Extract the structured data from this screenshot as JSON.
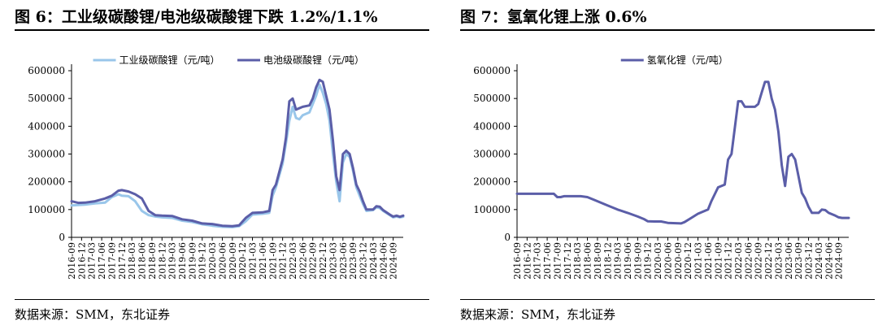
{
  "left": {
    "title": "图 6：工业级碳酸锂/电池级碳酸锂下跌 1.2%/1.1%",
    "source": "数据来源：SMM，东北证券"
  },
  "right": {
    "title": "图 7：氢氧化锂上涨 0.6%",
    "source": "数据来源：SMM，东北证券"
  },
  "chart_data": [
    {
      "type": "line",
      "title": "工业级碳酸锂/电池级碳酸锂下跌 1.2%/1.1%",
      "xlabel": "",
      "ylabel": "",
      "ylim": [
        0,
        600000
      ],
      "yticks": [
        "0",
        "100000",
        "200000",
        "300000",
        "400000",
        "500000",
        "600000"
      ],
      "x_start": "2016-09",
      "x_end": "2024-12",
      "tick_step_months": 3,
      "xticks": [
        "2016-09",
        "2016-12",
        "2017-03",
        "2017-06",
        "2017-09",
        "2017-12",
        "2018-03",
        "2018-06",
        "2018-09",
        "2018-12",
        "2019-03",
        "2019-06",
        "2019-09",
        "2019-12",
        "2020-03",
        "2020-06",
        "2020-09",
        "2020-12",
        "2021-03",
        "2021-06",
        "2021-09",
        "2021-12",
        "2022-03",
        "2022-06",
        "2022-09",
        "2022-12",
        "2023-03",
        "2023-06",
        "2023-09",
        "2023-12",
        "2024-03",
        "2024-06",
        "2024-09"
      ],
      "legend_position": "top",
      "series": [
        {
          "name": "工业级碳酸锂（元/吨）",
          "color": "#99c6ea",
          "points": [
            [
              "2016-09",
              115000
            ],
            [
              "2017-01",
              118000
            ],
            [
              "2017-04",
              122000
            ],
            [
              "2017-07",
              125000
            ],
            [
              "2017-09",
              145000
            ],
            [
              "2017-11",
              155000
            ],
            [
              "2017-12",
              150000
            ],
            [
              "2018-02",
              148000
            ],
            [
              "2018-04",
              130000
            ],
            [
              "2018-06",
              95000
            ],
            [
              "2018-08",
              80000
            ],
            [
              "2018-10",
              75000
            ],
            [
              "2018-12",
              72000
            ],
            [
              "2019-03",
              70000
            ],
            [
              "2019-06",
              60000
            ],
            [
              "2019-09",
              55000
            ],
            [
              "2019-12",
              47000
            ],
            [
              "2020-03",
              42000
            ],
            [
              "2020-06",
              38000
            ],
            [
              "2020-09",
              37000
            ],
            [
              "2020-11",
              40000
            ],
            [
              "2021-01",
              58000
            ],
            [
              "2021-03",
              82000
            ],
            [
              "2021-06",
              85000
            ],
            [
              "2021-08",
              88000
            ],
            [
              "2021-09",
              150000
            ],
            [
              "2021-10",
              180000
            ],
            [
              "2021-12",
              265000
            ],
            [
              "2022-01",
              340000
            ],
            [
              "2022-02",
              420000
            ],
            [
              "2022-03",
              470000
            ],
            [
              "2022-04",
              430000
            ],
            [
              "2022-05",
              425000
            ],
            [
              "2022-06",
              440000
            ],
            [
              "2022-08",
              450000
            ],
            [
              "2022-10",
              510000
            ],
            [
              "2022-11",
              550000
            ],
            [
              "2022-12",
              520000
            ],
            [
              "2023-01",
              480000
            ],
            [
              "2023-02",
              420000
            ],
            [
              "2023-03",
              300000
            ],
            [
              "2023-04",
              200000
            ],
            [
              "2023-05",
              130000
            ],
            [
              "2023-06",
              270000
            ],
            [
              "2023-07",
              300000
            ],
            [
              "2023-08",
              290000
            ],
            [
              "2023-09",
              240000
            ],
            [
              "2023-10",
              180000
            ],
            [
              "2023-11",
              150000
            ],
            [
              "2023-12",
              120000
            ],
            [
              "2024-01",
              95000
            ],
            [
              "2024-03",
              98000
            ],
            [
              "2024-04",
              108000
            ],
            [
              "2024-05",
              105000
            ],
            [
              "2024-06",
              95000
            ],
            [
              "2024-08",
              80000
            ],
            [
              "2024-09",
              72000
            ],
            [
              "2024-10",
              75000
            ],
            [
              "2024-11",
              72000
            ],
            [
              "2024-12",
              74000
            ]
          ]
        },
        {
          "name": "电池级碳酸锂（元/吨）",
          "color": "#5b5ea8",
          "points": [
            [
              "2016-09",
              130000
            ],
            [
              "2016-11",
              124000
            ],
            [
              "2017-01",
              125000
            ],
            [
              "2017-04",
              130000
            ],
            [
              "2017-07",
              140000
            ],
            [
              "2017-09",
              150000
            ],
            [
              "2017-11",
              168000
            ],
            [
              "2017-12",
              170000
            ],
            [
              "2018-02",
              165000
            ],
            [
              "2018-04",
              155000
            ],
            [
              "2018-06",
              140000
            ],
            [
              "2018-08",
              95000
            ],
            [
              "2018-10",
              80000
            ],
            [
              "2018-12",
              78000
            ],
            [
              "2019-03",
              77000
            ],
            [
              "2019-06",
              65000
            ],
            [
              "2019-09",
              60000
            ],
            [
              "2019-12",
              50000
            ],
            [
              "2020-03",
              48000
            ],
            [
              "2020-06",
              42000
            ],
            [
              "2020-09",
              40000
            ],
            [
              "2020-11",
              43000
            ],
            [
              "2021-01",
              70000
            ],
            [
              "2021-03",
              88000
            ],
            [
              "2021-06",
              90000
            ],
            [
              "2021-08",
              95000
            ],
            [
              "2021-09",
              170000
            ],
            [
              "2021-10",
              190000
            ],
            [
              "2021-12",
              280000
            ],
            [
              "2022-01",
              360000
            ],
            [
              "2022-02",
              490000
            ],
            [
              "2022-03",
              500000
            ],
            [
              "2022-04",
              460000
            ],
            [
              "2022-06",
              470000
            ],
            [
              "2022-08",
              475000
            ],
            [
              "2022-09",
              500000
            ],
            [
              "2022-10",
              540000
            ],
            [
              "2022-11",
              567000
            ],
            [
              "2022-12",
              560000
            ],
            [
              "2023-01",
              510000
            ],
            [
              "2023-02",
              460000
            ],
            [
              "2023-03",
              350000
            ],
            [
              "2023-04",
              220000
            ],
            [
              "2023-05",
              170000
            ],
            [
              "2023-06",
              300000
            ],
            [
              "2023-07",
              312000
            ],
            [
              "2023-08",
              300000
            ],
            [
              "2023-09",
              250000
            ],
            [
              "2023-10",
              190000
            ],
            [
              "2023-11",
              165000
            ],
            [
              "2023-12",
              130000
            ],
            [
              "2024-01",
              100000
            ],
            [
              "2024-03",
              100000
            ],
            [
              "2024-04",
              112000
            ],
            [
              "2024-05",
              110000
            ],
            [
              "2024-06",
              98000
            ],
            [
              "2024-08",
              82000
            ],
            [
              "2024-09",
              75000
            ],
            [
              "2024-10",
              78000
            ],
            [
              "2024-11",
              74000
            ],
            [
              "2024-12",
              78000
            ]
          ]
        }
      ]
    },
    {
      "type": "line",
      "title": "氢氧化锂上涨 0.6%",
      "xlabel": "",
      "ylabel": "",
      "ylim": [
        0,
        600000
      ],
      "yticks": [
        "0",
        "100000",
        "200000",
        "300000",
        "400000",
        "500000",
        "600000"
      ],
      "x_start": "2016-09",
      "x_end": "2024-12",
      "tick_step_months": 3,
      "xticks": [
        "2016-09",
        "2016-12",
        "2017-03",
        "2017-06",
        "2017-09",
        "2017-12",
        "2018-03",
        "2018-06",
        "2018-09",
        "2018-12",
        "2019-03",
        "2019-06",
        "2019-09",
        "2019-12",
        "2020-03",
        "2020-06",
        "2020-09",
        "2020-12",
        "2021-03",
        "2021-06",
        "2021-09",
        "2021-12",
        "2022-03",
        "2022-06",
        "2022-09",
        "2022-12",
        "2023-03",
        "2023-06",
        "2023-09",
        "2023-12",
        "2024-03",
        "2024-06",
        "2024-09"
      ],
      "legend_position": "top",
      "series": [
        {
          "name": "氢氧化锂（元/吨）",
          "color": "#5b5ea8",
          "points": [
            [
              "2016-09",
              157000
            ],
            [
              "2017-08",
              157000
            ],
            [
              "2017-09",
              145000
            ],
            [
              "2017-10",
              145000
            ],
            [
              "2017-11",
              148000
            ],
            [
              "2018-04",
              148000
            ],
            [
              "2018-06",
              145000
            ],
            [
              "2018-08",
              135000
            ],
            [
              "2018-12",
              115000
            ],
            [
              "2019-03",
              100000
            ],
            [
              "2019-06",
              88000
            ],
            [
              "2019-09",
              75000
            ],
            [
              "2019-11",
              65000
            ],
            [
              "2019-12",
              58000
            ],
            [
              "2020-02",
              57000
            ],
            [
              "2020-04",
              57000
            ],
            [
              "2020-06",
              52000
            ],
            [
              "2020-10",
              50000
            ],
            [
              "2020-11",
              55000
            ],
            [
              "2021-01",
              70000
            ],
            [
              "2021-03",
              85000
            ],
            [
              "2021-06",
              100000
            ],
            [
              "2021-07",
              130000
            ],
            [
              "2021-09",
              180000
            ],
            [
              "2021-11",
              190000
            ],
            [
              "2021-12",
              280000
            ],
            [
              "2022-01",
              300000
            ],
            [
              "2022-03",
              490000
            ],
            [
              "2022-04",
              490000
            ],
            [
              "2022-05",
              470000
            ],
            [
              "2022-08",
              470000
            ],
            [
              "2022-09",
              480000
            ],
            [
              "2022-10",
              520000
            ],
            [
              "2022-11",
              560000
            ],
            [
              "2022-12",
              560000
            ],
            [
              "2023-01",
              500000
            ],
            [
              "2023-02",
              460000
            ],
            [
              "2023-03",
              380000
            ],
            [
              "2023-04",
              260000
            ],
            [
              "2023-05",
              185000
            ],
            [
              "2023-06",
              290000
            ],
            [
              "2023-07",
              300000
            ],
            [
              "2023-08",
              280000
            ],
            [
              "2023-09",
              220000
            ],
            [
              "2023-10",
              160000
            ],
            [
              "2023-11",
              140000
            ],
            [
              "2023-12",
              110000
            ],
            [
              "2024-01",
              88000
            ],
            [
              "2024-03",
              88000
            ],
            [
              "2024-04",
              100000
            ],
            [
              "2024-05",
              98000
            ],
            [
              "2024-06",
              88000
            ],
            [
              "2024-08",
              78000
            ],
            [
              "2024-09",
              72000
            ],
            [
              "2024-10",
              70000
            ],
            [
              "2024-12",
              70000
            ]
          ]
        }
      ]
    }
  ]
}
